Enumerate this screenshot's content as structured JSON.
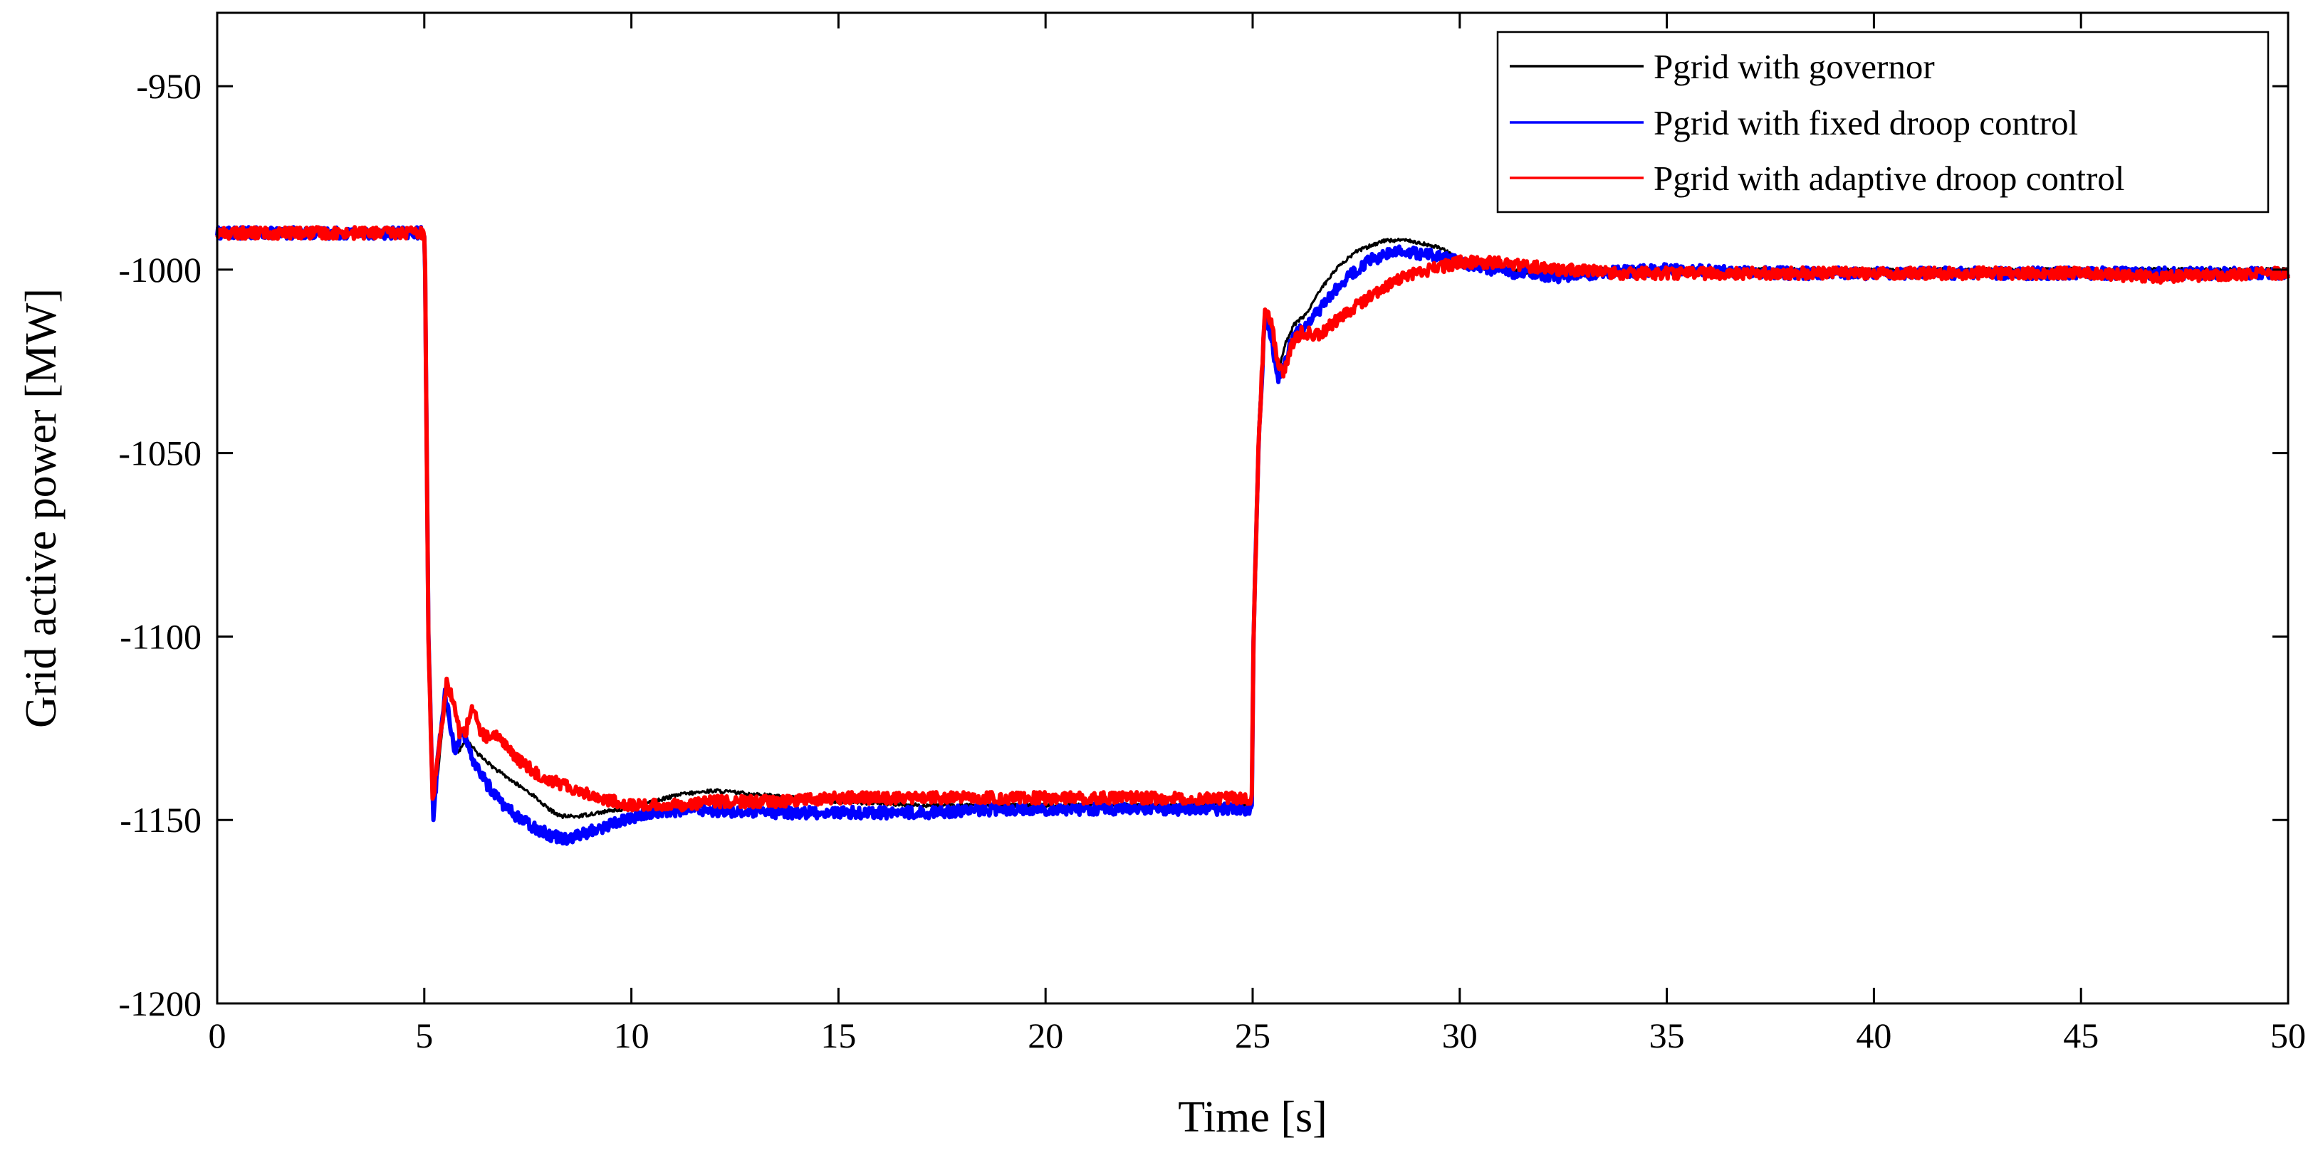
{
  "chart_data": {
    "type": "line",
    "title": "",
    "xlabel": "Time [s]",
    "ylabel": "Grid active power [MW]",
    "xlim": [
      0,
      50
    ],
    "ylim": [
      -1200,
      -930
    ],
    "xticks": [
      0,
      5,
      10,
      15,
      20,
      25,
      30,
      35,
      40,
      45,
      50
    ],
    "yticks": [
      -1200,
      -1150,
      -1100,
      -1050,
      -1000,
      -950
    ],
    "xtick_labels": [
      "0",
      "5",
      "10",
      "15",
      "20",
      "25",
      "30",
      "35",
      "40",
      "45",
      "50"
    ],
    "ytick_labels": [
      "-1200",
      "-1150",
      "-1100",
      "-1050",
      "-1000",
      "-950"
    ],
    "grid": false,
    "legend_position": "top-right",
    "series": [
      {
        "name": "Pgrid with governor",
        "color": "#000000",
        "noise": 0.5,
        "points": [
          [
            0,
            -990
          ],
          [
            5,
            -990
          ],
          [
            5.02,
            -1000
          ],
          [
            5.1,
            -1100
          ],
          [
            5.22,
            -1148
          ],
          [
            5.35,
            -1135
          ],
          [
            5.5,
            -1118
          ],
          [
            5.65,
            -1126
          ],
          [
            5.8,
            -1132
          ],
          [
            6,
            -1128
          ],
          [
            6.3,
            -1132
          ],
          [
            6.7,
            -1136
          ],
          [
            7.2,
            -1140
          ],
          [
            7.6,
            -1143
          ],
          [
            8,
            -1147
          ],
          [
            8.3,
            -1149
          ],
          [
            8.7,
            -1149
          ],
          [
            9.2,
            -1148
          ],
          [
            9.8,
            -1147
          ],
          [
            10.5,
            -1145
          ],
          [
            11.2,
            -1143
          ],
          [
            12,
            -1142
          ],
          [
            13,
            -1143
          ],
          [
            14,
            -1144
          ],
          [
            15,
            -1145
          ],
          [
            17,
            -1146
          ],
          [
            19,
            -1146
          ],
          [
            21,
            -1146
          ],
          [
            23,
            -1146
          ],
          [
            24.98,
            -1146
          ],
          [
            25.02,
            -1100
          ],
          [
            25.15,
            -1040
          ],
          [
            25.3,
            -1012
          ],
          [
            25.45,
            -1016
          ],
          [
            25.6,
            -1028
          ],
          [
            25.8,
            -1020
          ],
          [
            26.0,
            -1015
          ],
          [
            26.3,
            -1012
          ],
          [
            26.6,
            -1006
          ],
          [
            27.0,
            -1000
          ],
          [
            27.5,
            -995
          ],
          [
            28.2,
            -992
          ],
          [
            28.8,
            -992
          ],
          [
            29.5,
            -994
          ],
          [
            30.2,
            -998
          ],
          [
            31,
            -1000
          ],
          [
            32,
            -1001
          ],
          [
            33,
            -1000
          ],
          [
            35,
            -1000
          ],
          [
            37,
            -1000
          ],
          [
            40,
            -1000
          ],
          [
            43,
            -1000
          ],
          [
            46,
            -1000
          ],
          [
            50,
            -1000
          ]
        ]
      },
      {
        "name": "Pgrid with fixed droop control",
        "color": "#0000ff",
        "noise": 1.6,
        "points": [
          [
            0,
            -990
          ],
          [
            5,
            -990
          ],
          [
            5.02,
            -1000
          ],
          [
            5.1,
            -1100
          ],
          [
            5.22,
            -1150
          ],
          [
            5.35,
            -1130
          ],
          [
            5.5,
            -1116
          ],
          [
            5.6,
            -1122
          ],
          [
            5.75,
            -1132
          ],
          [
            5.9,
            -1125
          ],
          [
            6.1,
            -1132
          ],
          [
            6.5,
            -1140
          ],
          [
            7,
            -1147
          ],
          [
            7.5,
            -1151
          ],
          [
            8,
            -1154
          ],
          [
            8.4,
            -1155
          ],
          [
            8.8,
            -1154
          ],
          [
            9.3,
            -1152
          ],
          [
            9.8,
            -1150
          ],
          [
            10.5,
            -1148
          ],
          [
            11.5,
            -1147
          ],
          [
            13,
            -1148
          ],
          [
            15,
            -1148
          ],
          [
            17,
            -1148
          ],
          [
            19,
            -1147
          ],
          [
            21,
            -1147
          ],
          [
            23,
            -1147
          ],
          [
            24.98,
            -1147
          ],
          [
            25.02,
            -1100
          ],
          [
            25.15,
            -1045
          ],
          [
            25.3,
            -1012
          ],
          [
            25.45,
            -1018
          ],
          [
            25.6,
            -1030
          ],
          [
            25.8,
            -1024
          ],
          [
            26.0,
            -1018
          ],
          [
            26.4,
            -1014
          ],
          [
            26.8,
            -1008
          ],
          [
            27.3,
            -1002
          ],
          [
            27.9,
            -997
          ],
          [
            28.6,
            -995
          ],
          [
            29.3,
            -996
          ],
          [
            30,
            -998
          ],
          [
            30.8,
            -1000
          ],
          [
            31.5,
            -1001
          ],
          [
            32.3,
            -1002
          ],
          [
            33.2,
            -1001
          ],
          [
            35,
            -1000
          ],
          [
            38,
            -1001
          ],
          [
            41,
            -1001
          ],
          [
            44,
            -1001
          ],
          [
            47,
            -1001
          ],
          [
            50,
            -1001
          ]
        ]
      },
      {
        "name": "Pgrid with adaptive droop control",
        "color": "#ff0000",
        "noise": 1.6,
        "points": [
          [
            0,
            -990
          ],
          [
            5,
            -990
          ],
          [
            5.02,
            -1000
          ],
          [
            5.1,
            -1100
          ],
          [
            5.2,
            -1145
          ],
          [
            5.35,
            -1130
          ],
          [
            5.55,
            -1112
          ],
          [
            5.7,
            -1118
          ],
          [
            5.85,
            -1126
          ],
          [
            6.0,
            -1126
          ],
          [
            6.15,
            -1119
          ],
          [
            6.35,
            -1126
          ],
          [
            6.6,
            -1128
          ],
          [
            6.8,
            -1127
          ],
          [
            7.2,
            -1133
          ],
          [
            7.8,
            -1138
          ],
          [
            8.5,
            -1141
          ],
          [
            9.2,
            -1144
          ],
          [
            10,
            -1146
          ],
          [
            11,
            -1146
          ],
          [
            12,
            -1145
          ],
          [
            13.5,
            -1145
          ],
          [
            15,
            -1144
          ],
          [
            17,
            -1144
          ],
          [
            19,
            -1144
          ],
          [
            21,
            -1144
          ],
          [
            23,
            -1144
          ],
          [
            24.98,
            -1144
          ],
          [
            25.02,
            -1100
          ],
          [
            25.15,
            -1045
          ],
          [
            25.3,
            -1011
          ],
          [
            25.45,
            -1014
          ],
          [
            25.6,
            -1025
          ],
          [
            25.75,
            -1028
          ],
          [
            25.95,
            -1020
          ],
          [
            26.2,
            -1017
          ],
          [
            26.6,
            -1018
          ],
          [
            27.0,
            -1014
          ],
          [
            27.5,
            -1010
          ],
          [
            28,
            -1006
          ],
          [
            28.6,
            -1002
          ],
          [
            29.3,
            -1000
          ],
          [
            30,
            -998
          ],
          [
            30.8,
            -998
          ],
          [
            31.6,
            -999
          ],
          [
            32.5,
            -1000
          ],
          [
            34,
            -1001
          ],
          [
            36,
            -1001
          ],
          [
            39,
            -1001
          ],
          [
            42,
            -1001
          ],
          [
            45,
            -1001
          ],
          [
            47,
            -1002
          ],
          [
            50,
            -1001
          ]
        ]
      }
    ]
  }
}
